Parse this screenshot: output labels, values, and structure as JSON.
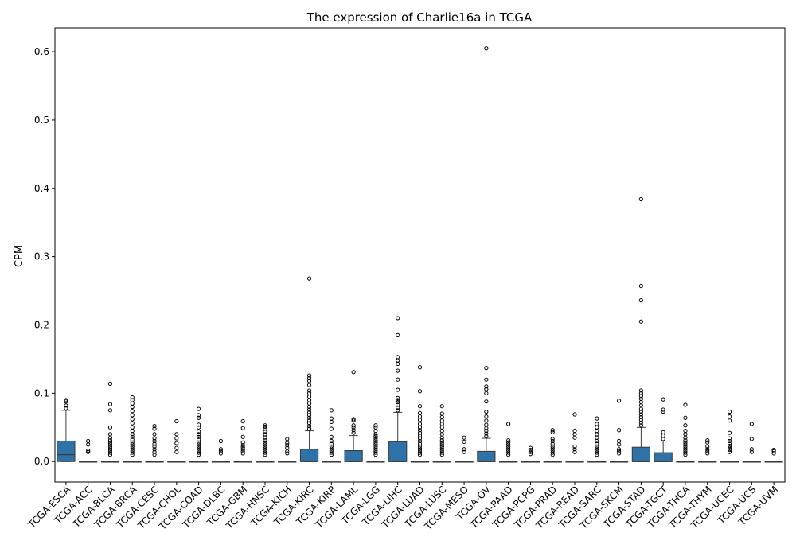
{
  "chart_data": {
    "type": "box",
    "title": "The expression of Charlie16a in TCGA",
    "xlabel": "",
    "ylabel": "CPM",
    "ylim": [
      -0.03,
      0.635
    ],
    "yticks": [
      0.0,
      0.1,
      0.2,
      0.3,
      0.4,
      0.5,
      0.6
    ],
    "ytick_labels": [
      "0.0",
      "0.1",
      "0.2",
      "0.3",
      "0.4",
      "0.5",
      "0.6"
    ],
    "grid": false,
    "box_color": "#2f72a8",
    "categories": [
      "TCGA-ESCA",
      "TCGA-ACC",
      "TCGA-BLCA",
      "TCGA-BRCA",
      "TCGA-CESC",
      "TCGA-CHOL",
      "TCGA-COAD",
      "TCGA-DLBC",
      "TCGA-GBM",
      "TCGA-HNSC",
      "TCGA-KICH",
      "TCGA-KIRC",
      "TCGA-KIRP",
      "TCGA-LAML",
      "TCGA-LGG",
      "TCGA-LIHC",
      "TCGA-LUAD",
      "TCGA-LUSC",
      "TCGA-MESO",
      "TCGA-OV",
      "TCGA-PAAD",
      "TCGA-PCPG",
      "TCGA-PRAD",
      "TCGA-READ",
      "TCGA-SARC",
      "TCGA-SKCM",
      "TCGA-STAD",
      "TCGA-TGCT",
      "TCGA-THCA",
      "TCGA-THYM",
      "TCGA-UCEC",
      "TCGA-UCS",
      "TCGA-UVM"
    ],
    "boxes": [
      {
        "q1": 0.0,
        "median": 0.01,
        "q3": 0.03,
        "whisker_low": 0.0,
        "whisker_high": 0.075,
        "outliers": [
          0.078,
          0.082,
          0.088,
          0.09
        ]
      },
      {
        "q1": 0.0,
        "median": 0.0,
        "q3": 0.0,
        "whisker_low": 0.0,
        "whisker_high": 0.0,
        "outliers": [
          0.014,
          0.016,
          0.025,
          0.03
        ]
      },
      {
        "q1": 0.0,
        "median": 0.0,
        "q3": 0.0,
        "whisker_low": 0.0,
        "whisker_high": 0.0,
        "outliers": [
          0.01,
          0.013,
          0.016,
          0.019,
          0.022,
          0.025,
          0.028,
          0.031,
          0.035,
          0.04,
          0.05,
          0.075,
          0.084,
          0.114
        ]
      },
      {
        "q1": 0.0,
        "median": 0.0,
        "q3": 0.0,
        "whisker_low": 0.0,
        "whisker_high": 0.0,
        "outliers": [
          0.01,
          0.013,
          0.016,
          0.019,
          0.022,
          0.025,
          0.028,
          0.032,
          0.036,
          0.04,
          0.045,
          0.05,
          0.056,
          0.062,
          0.068,
          0.074,
          0.08,
          0.085,
          0.09,
          0.094
        ]
      },
      {
        "q1": 0.0,
        "median": 0.0,
        "q3": 0.0,
        "whisker_low": 0.0,
        "whisker_high": 0.0,
        "outliers": [
          0.01,
          0.014,
          0.018,
          0.022,
          0.026,
          0.03,
          0.034,
          0.04,
          0.048,
          0.052
        ]
      },
      {
        "q1": 0.0,
        "median": 0.0,
        "q3": 0.0,
        "whisker_low": 0.0,
        "whisker_high": 0.0,
        "outliers": [
          0.014,
          0.02,
          0.027,
          0.034,
          0.04,
          0.059
        ]
      },
      {
        "q1": 0.0,
        "median": 0.0,
        "q3": 0.0,
        "whisker_low": 0.0,
        "whisker_high": 0.0,
        "outliers": [
          0.01,
          0.013,
          0.016,
          0.019,
          0.022,
          0.025,
          0.028,
          0.032,
          0.036,
          0.04,
          0.044,
          0.05,
          0.054,
          0.064,
          0.068,
          0.077
        ]
      },
      {
        "q1": 0.0,
        "median": 0.0,
        "q3": 0.0,
        "whisker_low": 0.0,
        "whisker_high": 0.0,
        "outliers": [
          0.012,
          0.015,
          0.018,
          0.03
        ]
      },
      {
        "q1": 0.0,
        "median": 0.0,
        "q3": 0.0,
        "whisker_low": 0.0,
        "whisker_high": 0.0,
        "outliers": [
          0.012,
          0.015,
          0.018,
          0.021,
          0.024,
          0.028,
          0.036,
          0.049,
          0.059
        ]
      },
      {
        "q1": 0.0,
        "median": 0.0,
        "q3": 0.0,
        "whisker_low": 0.0,
        "whisker_high": 0.0,
        "outliers": [
          0.01,
          0.013,
          0.016,
          0.019,
          0.022,
          0.025,
          0.028,
          0.031,
          0.035,
          0.04,
          0.044,
          0.048,
          0.051,
          0.053
        ]
      },
      {
        "q1": 0.0,
        "median": 0.0,
        "q3": 0.0,
        "whisker_low": 0.0,
        "whisker_high": 0.0,
        "outliers": [
          0.012,
          0.015,
          0.02,
          0.024,
          0.027,
          0.033
        ]
      },
      {
        "q1": 0.0,
        "median": 0.0,
        "q3": 0.018,
        "whisker_low": 0.0,
        "whisker_high": 0.045,
        "outliers": [
          0.048,
          0.052,
          0.056,
          0.06,
          0.064,
          0.068,
          0.072,
          0.076,
          0.08,
          0.085,
          0.09,
          0.095,
          0.1,
          0.104,
          0.112,
          0.118,
          0.122,
          0.126,
          0.268
        ]
      },
      {
        "q1": 0.0,
        "median": 0.0,
        "q3": 0.0,
        "whisker_low": 0.0,
        "whisker_high": 0.0,
        "outliers": [
          0.01,
          0.013,
          0.016,
          0.019,
          0.022,
          0.026,
          0.03,
          0.036,
          0.048,
          0.058,
          0.063,
          0.075
        ]
      },
      {
        "q1": 0.0,
        "median": 0.0,
        "q3": 0.016,
        "whisker_low": 0.0,
        "whisker_high": 0.038,
        "outliers": [
          0.042,
          0.046,
          0.05,
          0.053,
          0.06,
          0.062,
          0.131
        ]
      },
      {
        "q1": 0.0,
        "median": 0.0,
        "q3": 0.0,
        "whisker_low": 0.0,
        "whisker_high": 0.0,
        "outliers": [
          0.01,
          0.013,
          0.016,
          0.019,
          0.022,
          0.025,
          0.028,
          0.031,
          0.034,
          0.037,
          0.04,
          0.045,
          0.05,
          0.053
        ]
      },
      {
        "q1": 0.0,
        "median": 0.0,
        "q3": 0.029,
        "whisker_low": 0.0,
        "whisker_high": 0.072,
        "outliers": [
          0.075,
          0.079,
          0.083,
          0.087,
          0.09,
          0.093,
          0.105,
          0.12,
          0.133,
          0.143,
          0.148,
          0.153,
          0.185,
          0.21
        ]
      },
      {
        "q1": 0.0,
        "median": 0.0,
        "q3": 0.0,
        "whisker_low": 0.0,
        "whisker_high": 0.0,
        "outliers": [
          0.01,
          0.013,
          0.016,
          0.019,
          0.022,
          0.026,
          0.03,
          0.034,
          0.038,
          0.042,
          0.046,
          0.05,
          0.055,
          0.061,
          0.066,
          0.071,
          0.081,
          0.103,
          0.138
        ]
      },
      {
        "q1": 0.0,
        "median": 0.0,
        "q3": 0.0,
        "whisker_low": 0.0,
        "whisker_high": 0.0,
        "outliers": [
          0.01,
          0.013,
          0.016,
          0.019,
          0.022,
          0.025,
          0.028,
          0.031,
          0.035,
          0.04,
          0.045,
          0.05,
          0.055,
          0.06,
          0.065,
          0.07,
          0.081
        ]
      },
      {
        "q1": 0.0,
        "median": 0.0,
        "q3": 0.0,
        "whisker_low": 0.0,
        "whisker_high": 0.0,
        "outliers": [
          0.014,
          0.018,
          0.029,
          0.035
        ]
      },
      {
        "q1": 0.0,
        "median": 0.0,
        "q3": 0.015,
        "whisker_low": 0.0,
        "whisker_high": 0.034,
        "outliers": [
          0.037,
          0.041,
          0.045,
          0.049,
          0.054,
          0.06,
          0.066,
          0.073,
          0.088,
          0.1,
          0.106,
          0.11,
          0.12,
          0.137,
          0.605
        ]
      },
      {
        "q1": 0.0,
        "median": 0.0,
        "q3": 0.0,
        "whisker_low": 0.0,
        "whisker_high": 0.0,
        "outliers": [
          0.01,
          0.013,
          0.016,
          0.019,
          0.022,
          0.025,
          0.028,
          0.031,
          0.055
        ]
      },
      {
        "q1": 0.0,
        "median": 0.0,
        "q3": 0.0,
        "whisker_low": 0.0,
        "whisker_high": 0.0,
        "outliers": [
          0.011,
          0.014,
          0.017,
          0.02
        ]
      },
      {
        "q1": 0.0,
        "median": 0.0,
        "q3": 0.0,
        "whisker_low": 0.0,
        "whisker_high": 0.0,
        "outliers": [
          0.01,
          0.013,
          0.016,
          0.019,
          0.022,
          0.026,
          0.03,
          0.033,
          0.043,
          0.046
        ]
      },
      {
        "q1": 0.0,
        "median": 0.0,
        "q3": 0.0,
        "whisker_low": 0.0,
        "whisker_high": 0.0,
        "outliers": [
          0.014,
          0.018,
          0.022,
          0.035,
          0.04,
          0.045,
          0.069
        ]
      },
      {
        "q1": 0.0,
        "median": 0.0,
        "q3": 0.0,
        "whisker_low": 0.0,
        "whisker_high": 0.0,
        "outliers": [
          0.01,
          0.013,
          0.016,
          0.019,
          0.022,
          0.026,
          0.03,
          0.035,
          0.04,
          0.045,
          0.05,
          0.055,
          0.063
        ]
      },
      {
        "q1": 0.0,
        "median": 0.0,
        "q3": 0.0,
        "whisker_low": 0.0,
        "whisker_high": 0.0,
        "outliers": [
          0.012,
          0.015,
          0.018,
          0.025,
          0.03,
          0.046,
          0.089
        ]
      },
      {
        "q1": 0.0,
        "median": 0.0,
        "q3": 0.021,
        "whisker_low": 0.0,
        "whisker_high": 0.05,
        "outliers": [
          0.053,
          0.057,
          0.061,
          0.065,
          0.069,
          0.073,
          0.077,
          0.082,
          0.087,
          0.092,
          0.096,
          0.1,
          0.104,
          0.205,
          0.236,
          0.257,
          0.384
        ]
      },
      {
        "q1": 0.0,
        "median": 0.0,
        "q3": 0.013,
        "whisker_low": 0.0,
        "whisker_high": 0.03,
        "outliers": [
          0.033,
          0.038,
          0.043,
          0.073,
          0.076,
          0.091
        ]
      },
      {
        "q1": 0.0,
        "median": 0.0,
        "q3": 0.0,
        "whisker_low": 0.0,
        "whisker_high": 0.0,
        "outliers": [
          0.01,
          0.013,
          0.016,
          0.019,
          0.022,
          0.025,
          0.028,
          0.031,
          0.035,
          0.04,
          0.045,
          0.053,
          0.064,
          0.083
        ]
      },
      {
        "q1": 0.0,
        "median": 0.0,
        "q3": 0.0,
        "whisker_low": 0.0,
        "whisker_high": 0.0,
        "outliers": [
          0.012,
          0.015,
          0.018,
          0.022,
          0.028,
          0.031
        ]
      },
      {
        "q1": 0.0,
        "median": 0.0,
        "q3": 0.0,
        "whisker_low": 0.0,
        "whisker_high": 0.0,
        "outliers": [
          0.014,
          0.017,
          0.02,
          0.023,
          0.026,
          0.03,
          0.034,
          0.042,
          0.06,
          0.066,
          0.073
        ]
      },
      {
        "q1": 0.0,
        "median": 0.0,
        "q3": 0.0,
        "whisker_low": 0.0,
        "whisker_high": 0.0,
        "outliers": [
          0.014,
          0.018,
          0.033,
          0.055
        ]
      },
      {
        "q1": 0.0,
        "median": 0.0,
        "q3": 0.0,
        "whisker_low": 0.0,
        "whisker_high": 0.0,
        "outliers": [
          0.012,
          0.015,
          0.017
        ]
      }
    ]
  }
}
